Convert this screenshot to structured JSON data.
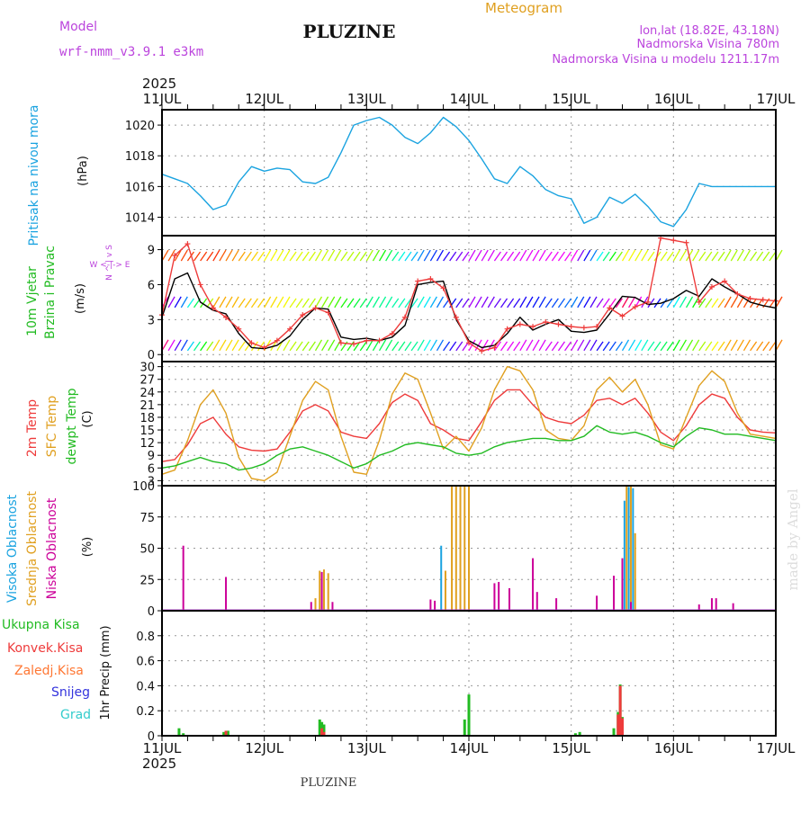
{
  "header": {
    "title": "PLUZINE",
    "meteogram": "Meteogram",
    "model_label": "Model",
    "model_name": "wrf-nmm_v3.9.1  e3km",
    "lonlat": "lon,lat (18.82E, 43.18N)",
    "elevation": "Nadmorska Visina 780m",
    "model_elevation": "Nadmorska Visina u modelu 1211.17m",
    "year_top": "2025",
    "year_bottom": "2025",
    "footer": "PLUZINE",
    "watermark": "made by Angel"
  },
  "colors": {
    "pressure": "#1aa3e0",
    "temp2m": "#ee3b3b",
    "sfc": "#e0a020",
    "dewpt": "#22bb22",
    "purple": "#bb44dd",
    "mag": "#cc0099"
  },
  "chart_data": {
    "type": "line",
    "x_labels": [
      "11JUL",
      "12JUL",
      "13JUL",
      "14JUL",
      "15JUL",
      "16JUL",
      "17JUL"
    ],
    "x_unit": "hours since 11JUL 00Z",
    "x_range": [
      0,
      144
    ],
    "panels": [
      {
        "id": "pressure",
        "ylabel": [
          "Pritisak na nivou mora",
          "(hPa)"
        ],
        "yticks": [
          1014,
          1016,
          1018,
          1020
        ],
        "ylim": [
          1012.8,
          1021.0
        ],
        "series": [
          {
            "name": "MSLP",
            "x": [
              0,
              3,
              6,
              9,
              12,
              15,
              18,
              21,
              24,
              27,
              30,
              33,
              36,
              39,
              42,
              45,
              48,
              51,
              54,
              57,
              60,
              63,
              66,
              69,
              72,
              75,
              78,
              81,
              84,
              87,
              90,
              93,
              96,
              99,
              102,
              105,
              108,
              111,
              114,
              117,
              120,
              123,
              126,
              129,
              132,
              135,
              138,
              141,
              144
            ],
            "y": [
              1016.8,
              1016.5,
              1016.2,
              1015.4,
              1014.5,
              1014.8,
              1016.3,
              1017.3,
              1017.0,
              1017.2,
              1017.1,
              1016.3,
              1016.2,
              1016.6,
              1018.2,
              1020.0,
              1020.3,
              1020.5,
              1020.0,
              1019.2,
              1018.8,
              1019.5,
              1020.5,
              1019.9,
              1019.0,
              1017.8,
              1016.5,
              1016.2,
              1017.3,
              1016.7,
              1015.8,
              1015.4,
              1015.2,
              1013.6,
              1014.0,
              1015.3,
              1014.9,
              1015.5,
              1014.7,
              1013.7,
              1013.4,
              1014.5,
              1016.2,
              1016.0,
              1016.0,
              1016.0,
              1016.0,
              1016.0,
              1016.0
            ]
          }
        ]
      },
      {
        "id": "wind",
        "ylabel": [
          "10m Vjetar",
          "Brzina i Pravac",
          "(m/s)"
        ],
        "legend_compass": "W <-|-> E",
        "legend_compass_v": "N ^ | v S",
        "yticks": [
          0,
          3,
          6,
          9
        ],
        "ylim": [
          -0.6,
          10.2
        ],
        "series": [
          {
            "name": "wind speed",
            "x": [
              0,
              3,
              6,
              9,
              12,
              15,
              18,
              21,
              24,
              27,
              30,
              33,
              36,
              39,
              42,
              45,
              48,
              51,
              54,
              57,
              60,
              63,
              66,
              69,
              72,
              75,
              78,
              81,
              84,
              87,
              90,
              93,
              96,
              99,
              102,
              105,
              108,
              111,
              114,
              117,
              120,
              123,
              126,
              129,
              132,
              135,
              138,
              141,
              144
            ],
            "y": [
              3.2,
              6.5,
              7.0,
              4.5,
              3.8,
              3.5,
              1.8,
              0.6,
              0.5,
              0.8,
              1.6,
              3.0,
              4.0,
              3.9,
              1.5,
              1.3,
              1.4,
              1.2,
              1.5,
              2.5,
              6.0,
              6.2,
              6.3,
              3.0,
              1.2,
              0.6,
              0.8,
              1.8,
              3.2,
              2.1,
              2.6,
              3.0,
              2.0,
              1.9,
              2.1,
              3.5,
              5.0,
              4.9,
              4.3,
              4.4,
              4.8,
              5.5,
              5.0,
              6.5,
              5.8,
              5.2,
              4.5,
              4.2,
              4.0
            ]
          },
          {
            "name": "wind gust",
            "x": [
              0,
              3,
              6,
              9,
              12,
              15,
              18,
              21,
              24,
              27,
              30,
              33,
              36,
              39,
              42,
              45,
              48,
              51,
              54,
              57,
              60,
              63,
              66,
              69,
              72,
              75,
              78,
              81,
              84,
              87,
              90,
              93,
              96,
              99,
              102,
              105,
              108,
              111,
              114,
              117,
              120,
              123,
              126,
              129,
              132,
              135,
              138,
              141,
              144
            ],
            "y": [
              3.4,
              8.5,
              9.5,
              6.0,
              4.0,
              3.2,
              2.2,
              1.0,
              0.6,
              1.2,
              2.2,
              3.4,
              4.0,
              3.6,
              1.0,
              0.9,
              1.2,
              1.2,
              1.8,
              3.2,
              6.3,
              6.5,
              5.7,
              3.2,
              1.0,
              0.3,
              0.6,
              2.2,
              2.6,
              2.4,
              2.8,
              2.6,
              2.4,
              2.3,
              2.4,
              4.0,
              3.3,
              4.1,
              4.5,
              10.0,
              9.8,
              9.6,
              4.5,
              5.8,
              6.3,
              5.2,
              4.8,
              4.7,
              4.6
            ]
          }
        ]
      },
      {
        "id": "temperature",
        "ylabel": [
          "2m Temp",
          "SFC Temp",
          "dewpt Temp",
          "(C)"
        ],
        "yticks": [
          3,
          6,
          9,
          12,
          15,
          18,
          21,
          24,
          27,
          30
        ],
        "ylim": [
          1.8,
          31.2
        ],
        "series": [
          {
            "name": "2m Temp",
            "x": [
              0,
              3,
              6,
              9,
              12,
              15,
              18,
              21,
              24,
              27,
              30,
              33,
              36,
              39,
              42,
              45,
              48,
              51,
              54,
              57,
              60,
              63,
              66,
              69,
              72,
              75,
              78,
              81,
              84,
              87,
              90,
              93,
              96,
              99,
              102,
              105,
              108,
              111,
              114,
              117,
              120,
              123,
              126,
              129,
              132,
              135,
              138,
              141,
              144
            ],
            "y": [
              7.5,
              8.0,
              11.5,
              16.5,
              18.0,
              14.0,
              11.0,
              10.2,
              10.0,
              10.5,
              14.5,
              19.5,
              21.0,
              19.5,
              14.5,
              13.5,
              13.0,
              16.5,
              21.5,
              23.5,
              22.0,
              16.5,
              15.0,
              13.0,
              12.5,
              17.0,
              22.0,
              24.5,
              24.5,
              21.0,
              18.0,
              17.0,
              16.5,
              18.5,
              22.0,
              22.5,
              21.0,
              22.5,
              19.0,
              14.5,
              12.5,
              16.0,
              21.0,
              23.5,
              22.5,
              18.0,
              15.0,
              14.5,
              14.3
            ]
          },
          {
            "name": "SFC Temp",
            "x": [
              0,
              3,
              6,
              9,
              12,
              15,
              18,
              21,
              24,
              27,
              30,
              33,
              36,
              39,
              42,
              45,
              48,
              51,
              54,
              57,
              60,
              63,
              66,
              69,
              72,
              75,
              78,
              81,
              84,
              87,
              90,
              93,
              96,
              99,
              102,
              105,
              108,
              111,
              114,
              117,
              120,
              123,
              126,
              129,
              132,
              135,
              138,
              141,
              144
            ],
            "y": [
              4.5,
              5.5,
              12.5,
              21.0,
              24.5,
              19.0,
              8.5,
              3.5,
              3.0,
              5.0,
              13.5,
              22.0,
              26.5,
              24.5,
              13.5,
              5.0,
              4.5,
              12.5,
              23.5,
              28.5,
              27.0,
              19.0,
              10.5,
              13.5,
              10.0,
              15.5,
              24.5,
              30.0,
              29.0,
              24.5,
              15.0,
              13.0,
              12.5,
              16.0,
              24.5,
              27.5,
              24.0,
              27.0,
              21.0,
              11.5,
              10.5,
              18.0,
              25.5,
              29.0,
              26.5,
              19.0,
              14.0,
              13.5,
              13.0
            ]
          },
          {
            "name": "dewpt Temp",
            "x": [
              0,
              3,
              6,
              9,
              12,
              15,
              18,
              21,
              24,
              27,
              30,
              33,
              36,
              39,
              42,
              45,
              48,
              51,
              54,
              57,
              60,
              63,
              66,
              69,
              72,
              75,
              78,
              81,
              84,
              87,
              90,
              93,
              96,
              99,
              102,
              105,
              108,
              111,
              114,
              117,
              120,
              123,
              126,
              129,
              132,
              135,
              138,
              141,
              144
            ],
            "y": [
              6.0,
              6.5,
              7.5,
              8.5,
              7.5,
              7.0,
              5.5,
              6.0,
              7.0,
              9.0,
              10.5,
              11.0,
              10.0,
              9.0,
              7.5,
              6.0,
              7.0,
              9.0,
              10.0,
              11.5,
              12.0,
              11.5,
              11.0,
              9.5,
              9.0,
              9.5,
              11.0,
              12.0,
              12.5,
              13.0,
              13.0,
              12.5,
              12.5,
              13.5,
              16.0,
              14.5,
              14.0,
              14.5,
              13.5,
              12.0,
              11.0,
              13.5,
              15.5,
              15.0,
              14.0,
              14.0,
              13.5,
              13.0,
              12.5
            ]
          }
        ]
      },
      {
        "id": "clouds",
        "type": "bar",
        "ylabel": [
          "Visoka Oblacnost",
          "Srednja Oblacnost",
          "Niska Oblacnost",
          "(%)"
        ],
        "yticks": [
          0,
          25,
          50,
          75,
          100
        ],
        "ylim": [
          0,
          100
        ],
        "series": [
          {
            "name": "Visoka Oblacnost",
            "x": [
              65.5,
              108.5,
              109.5,
              110.5
            ],
            "y": [
              52,
              88,
              99,
              98
            ]
          },
          {
            "name": "Srednja Oblacnost",
            "x": [
              36,
              37,
              38,
              39,
              66.5,
              68,
              69,
              70,
              71,
              72,
              109,
              110,
              111
            ],
            "y": [
              10,
              32,
              33,
              30,
              32,
              100,
              100,
              100,
              100,
              100,
              100,
              100,
              62
            ]
          },
          {
            "name": "Niska Oblacnost",
            "x": [
              5,
              15,
              35,
              37.5,
              40,
              63,
              64,
              78,
              79,
              81.5,
              87,
              88,
              92.5,
              102,
              106,
              108,
              110,
              126,
              129,
              130,
              134
            ],
            "y": [
              52,
              27,
              7,
              31,
              7,
              9,
              8,
              22,
              23,
              18,
              42,
              15,
              10,
              12,
              28,
              42,
              7,
              5,
              10,
              10,
              6
            ]
          }
        ]
      },
      {
        "id": "precip",
        "type": "bar",
        "ylabel": [
          "Ukupna Kisa",
          "Konvek.Kisa",
          "Zaledj.Kisa",
          "Snijeg",
          "Grad",
          "1hr Precip (mm)"
        ],
        "yticks": [
          0,
          0.2,
          0.4,
          0.6,
          0.8
        ],
        "ylim": [
          0,
          1.0
        ],
        "series": [
          {
            "name": "Ukupna Kisa",
            "x": [
              4,
              5,
              14.5,
              15.5,
              37,
              37.5,
              38,
              71,
              72,
              97,
              98,
              106,
              107,
              107.5,
              108
            ],
            "y": [
              0.06,
              0.02,
              0.03,
              0.04,
              0.13,
              0.11,
              0.09,
              0.13,
              0.33,
              0.02,
              0.03,
              0.06,
              0.19,
              0.41,
              0.15
            ]
          },
          {
            "name": "Konvek.Kisa",
            "x": [
              15,
              37.5,
              38,
              107,
              107.5,
              108
            ],
            "y": [
              0.04,
              0.06,
              0.03,
              0.17,
              0.4,
              0.14
            ]
          }
        ]
      }
    ]
  }
}
